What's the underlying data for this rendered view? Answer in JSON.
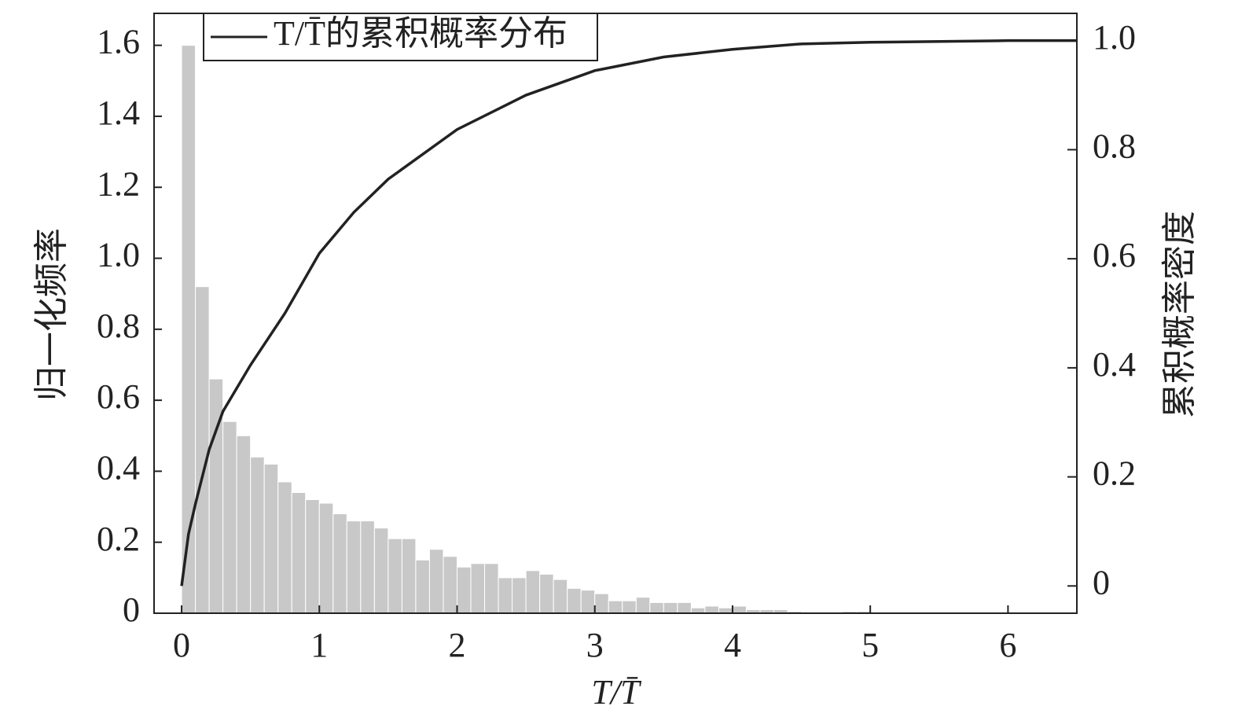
{
  "chart_data": {
    "type": "histogram",
    "bins": [
      0,
      0.1,
      0.2,
      0.3,
      0.4,
      0.5,
      0.6,
      0.7,
      0.8,
      0.9,
      1,
      1.1,
      1.2,
      1.3,
      1.4,
      1.5,
      1.6,
      1.7,
      1.8,
      1.9,
      2,
      2.1,
      2.2,
      2.3,
      2.4,
      2.5,
      2.6,
      2.7,
      2.8,
      2.9,
      3,
      3.1,
      3.2,
      3.3,
      3.4,
      3.5,
      3.6,
      3.7,
      3.8,
      3.9,
      4,
      4.1,
      4.2,
      4.3,
      4.4,
      4.5,
      4.6,
      4.7,
      4.8,
      4.9,
      5,
      5.1
    ],
    "values": [
      1.6,
      0.92,
      0.66,
      0.54,
      0.5,
      0.44,
      0.42,
      0.37,
      0.34,
      0.32,
      0.31,
      0.28,
      0.26,
      0.26,
      0.24,
      0.21,
      0.21,
      0.15,
      0.18,
      0.16,
      0.13,
      0.14,
      0.14,
      0.1,
      0.1,
      0.12,
      0.11,
      0.095,
      0.07,
      0.065,
      0.055,
      0.035,
      0.035,
      0.045,
      0.03,
      0.03,
      0.03,
      0.015,
      0.02,
      0.015,
      0.02,
      0.01,
      0.01,
      0.01,
      0.005,
      0.003,
      0.003,
      0.003,
      0.005,
      0.005,
      0.002
    ],
    "color": "#c8c8c8",
    "series": [
      {
        "type": "line",
        "name": "T/T̄的累积概率分布",
        "color": "#222222",
        "axis": "y2",
        "x": [
          0,
          0.05,
          0.1,
          0.2,
          0.3,
          0.5,
          0.75,
          1,
          1.25,
          1.5,
          2,
          2.5,
          3,
          3.5,
          4,
          4.5,
          5,
          6,
          6.5
        ],
        "values": [
          0,
          0.095,
          0.15,
          0.25,
          0.32,
          0.405,
          0.5,
          0.61,
          0.685,
          0.746,
          0.837,
          0.9,
          0.945,
          0.97,
          0.984,
          0.994,
          0.997,
          1,
          1
        ]
      }
    ],
    "xlabel": "T/T̄",
    "ylabel": "归一化频率",
    "y2label": "累积概率密度",
    "xlim": [
      -0.2,
      6.5
    ],
    "xticks": [
      0,
      1,
      2,
      3,
      4,
      5,
      6
    ],
    "ylim": [
      0,
      1.69
    ],
    "yticks": [
      0,
      0.2,
      0.4,
      0.6,
      0.8,
      {
        "value": 1,
        "label": "1.0"
      },
      1.2,
      1.4,
      1.6
    ],
    "y2lim": [
      -0.05,
      1.05
    ],
    "y2ticks": [
      0,
      0.2,
      0.4,
      0.6,
      0.8,
      {
        "value": 1,
        "label": "1.0"
      }
    ],
    "legend": "upper left"
  }
}
